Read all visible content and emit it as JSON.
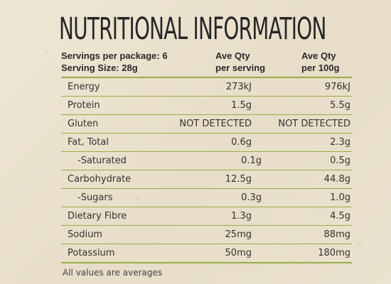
{
  "title": "NUTRITIONAL INFORMATION",
  "servings": {
    "per_package": "Servings per package: 6",
    "serving_size": "Serving Size: 28g"
  },
  "columns": {
    "serving_line1": "Ave Qty",
    "serving_line2": "per serving",
    "per100_line1": "Ave Qty",
    "per100_line2": "per 100g"
  },
  "rows": [
    {
      "label": "Energy",
      "per_serving": "273kJ",
      "per_100g": "976kJ"
    },
    {
      "label": "Protein",
      "per_serving": "1.5g",
      "per_100g": "5.5g"
    },
    {
      "label": "Gluten",
      "per_serving": "NOT DETECTED",
      "per_100g": "NOT DETECTED"
    },
    {
      "label": "Fat, Total",
      "per_serving": "0.6g",
      "per_100g": "2.3g"
    },
    {
      "label": "-Saturated",
      "per_serving": "0.1g",
      "per_100g": "0.5g"
    },
    {
      "label": "Carbohydrate",
      "per_serving": "12.5g",
      "per_100g": "44.8g"
    },
    {
      "label": "-Sugars",
      "per_serving": "0.3g",
      "per_100g": "1.0g"
    },
    {
      "label": "Dietary Fibre",
      "per_serving": "1.3g",
      "per_100g": "4.5g"
    },
    {
      "label": "Sodium",
      "per_serving": "25mg",
      "per_100g": "88mg"
    },
    {
      "label": "Potassium",
      "per_serving": "50mg",
      "per_100g": "180mg"
    }
  ],
  "footnote": "All values are averages",
  "colors": {
    "rule_green": "#9aab45",
    "background": "#ece4d2",
    "text": "#2c2c2c"
  }
}
